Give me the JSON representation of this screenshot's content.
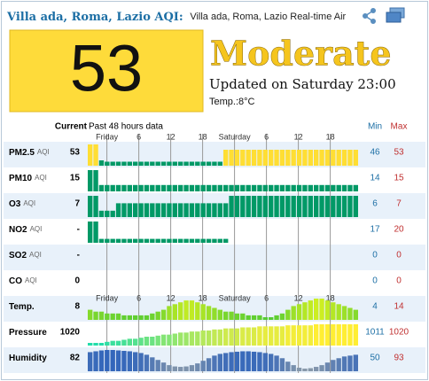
{
  "header": {
    "title": "Villa ada, Roma, Lazio AQI:",
    "subtitle": "Villa ada, Roma, Lazio Real-time Air"
  },
  "aqi": {
    "value": 53,
    "level": "Moderate",
    "updated": "Updated on Saturday 23:00",
    "temp_label": "Temp.:",
    "temp": "8°C"
  },
  "table": {
    "current_header": "Current",
    "history_header": "Past 48 hours data",
    "min_header": "Min",
    "max_header": "Max",
    "time_labels": [
      "Friday",
      "6",
      "12",
      "18",
      "Saturday",
      "6",
      "12",
      "18"
    ],
    "levels": [
      {
        "upto": 50,
        "color": "#009966"
      },
      {
        "upto": 100,
        "color": "#ffde33"
      }
    ],
    "rows": [
      {
        "name": "PM2.5",
        "unit": "AQI",
        "current": 53,
        "min": 46,
        "max": 53,
        "bars": [
          53,
          53,
          47,
          46.5,
          46.5,
          46.5,
          46.5,
          46.5,
          46.5,
          46.5,
          46.5,
          46.5,
          46.5,
          46.5,
          46.5,
          46.5,
          46.5,
          46.5,
          46.5,
          46.5,
          46.5,
          46.5,
          46.5,
          46.5,
          51,
          51,
          51,
          51,
          51,
          51,
          51,
          51,
          51,
          51,
          51,
          51,
          51,
          51,
          51,
          51,
          51,
          51,
          51,
          51,
          51,
          51,
          51,
          51
        ]
      },
      {
        "name": "PM10",
        "unit": "AQI",
        "current": 15,
        "min": 14,
        "max": 15,
        "bars": [
          15,
          15,
          14.2,
          14.2,
          14.2,
          14.2,
          14.2,
          14.2,
          14.2,
          14.2,
          14.2,
          14.2,
          14.2,
          14.2,
          14.2,
          14.2,
          14.2,
          14.2,
          14.2,
          14.2,
          14.2,
          14.2,
          14.2,
          14.2,
          14.2,
          14.2,
          14.2,
          14.2,
          14.2,
          14.2,
          14.2,
          14.2,
          14.2,
          14.2,
          14.2,
          14.2,
          14.2,
          14.2,
          14.2,
          14.2,
          14.2,
          14.2,
          14.2,
          14.2,
          14.2,
          14.2,
          14.2,
          14.2
        ]
      },
      {
        "name": "O3",
        "unit": "AQI",
        "current": 7,
        "min": 6,
        "max": 7,
        "bars": [
          7,
          7,
          6.2,
          6.2,
          6.2,
          6.6,
          6.6,
          6.6,
          6.6,
          6.6,
          6.6,
          6.6,
          6.6,
          6.6,
          6.6,
          6.6,
          6.6,
          6.6,
          6.6,
          6.6,
          6.6,
          6.6,
          6.6,
          6.6,
          6.6,
          7,
          7,
          7,
          7,
          7,
          7,
          7,
          7,
          7,
          7,
          7,
          7,
          7,
          7,
          7,
          7,
          7,
          7,
          7,
          7,
          7,
          7,
          7
        ]
      },
      {
        "name": "NO2",
        "unit": "AQI",
        "current": "-",
        "min": 17,
        "max": 20,
        "bars": [
          20,
          20,
          17.2,
          17.2,
          17.2,
          17.2,
          17.2,
          17.2,
          17.2,
          17.2,
          17.2,
          17.2,
          17.2,
          17.2,
          17.2,
          17.2,
          17.2,
          17.2,
          17.2,
          17.2,
          17.2,
          17.2,
          17.2,
          17.2,
          17.2,
          null,
          null,
          null,
          null,
          null,
          null,
          null,
          null,
          null,
          null,
          null,
          null,
          null,
          null,
          null,
          null,
          null,
          null,
          null,
          null,
          null,
          null,
          null
        ]
      },
      {
        "name": "SO2",
        "unit": "AQI",
        "current": "-",
        "min": 0,
        "max": 0,
        "bars": []
      },
      {
        "name": "CO",
        "unit": "AQI",
        "current": 0,
        "min": 0,
        "max": 0,
        "bars": []
      },
      {
        "name": "Temp.",
        "current": 8,
        "min": 4,
        "max": 14,
        "gradient": [
          "#55cc33",
          "#ccee22"
        ],
        "bars": [
          8,
          7,
          7,
          6,
          6,
          6,
          5,
          5,
          5,
          5,
          5,
          6,
          7,
          8,
          10,
          11,
          12,
          13,
          13,
          12,
          11,
          10,
          9,
          8,
          7,
          7,
          6,
          6,
          5,
          5,
          5,
          4,
          4,
          5,
          6,
          8,
          10,
          11,
          12,
          13,
          14,
          14,
          13,
          12,
          11,
          10,
          9,
          8
        ]
      },
      {
        "name": "Pressure",
        "current": 1020,
        "min": 1011,
        "max": 1020,
        "gradient": [
          "#22ddaa",
          "#ffee33"
        ],
        "bars": [
          1011,
          1011,
          1011,
          1011.5,
          1012,
          1012,
          1012.5,
          1013,
          1013,
          1013.5,
          1014,
          1014,
          1014.5,
          1015,
          1015,
          1015.5,
          1016,
          1016,
          1016.5,
          1016.5,
          1017,
          1017,
          1017.5,
          1017.5,
          1018,
          1018,
          1018,
          1018.5,
          1018.5,
          1018.5,
          1019,
          1019,
          1019,
          1019,
          1019,
          1019.5,
          1019.5,
          1019.5,
          1019.5,
          1019.5,
          1020,
          1020,
          1020,
          1020,
          1020,
          1020,
          1020,
          1020
        ]
      },
      {
        "name": "Humidity",
        "current": 82,
        "min": 50,
        "max": 93,
        "gradient": [
          "#8899aa",
          "#3366bb"
        ],
        "bars": [
          88,
          90,
          92,
          93,
          93,
          92,
          91,
          90,
          88,
          86,
          82,
          76,
          70,
          64,
          58,
          55,
          54,
          55,
          58,
          62,
          68,
          74,
          80,
          84,
          86,
          88,
          89,
          90,
          90,
          89,
          88,
          86,
          84,
          80,
          74,
          66,
          58,
          52,
          50,
          51,
          54,
          58,
          64,
          70,
          74,
          78,
          80,
          82
        ]
      }
    ]
  }
}
